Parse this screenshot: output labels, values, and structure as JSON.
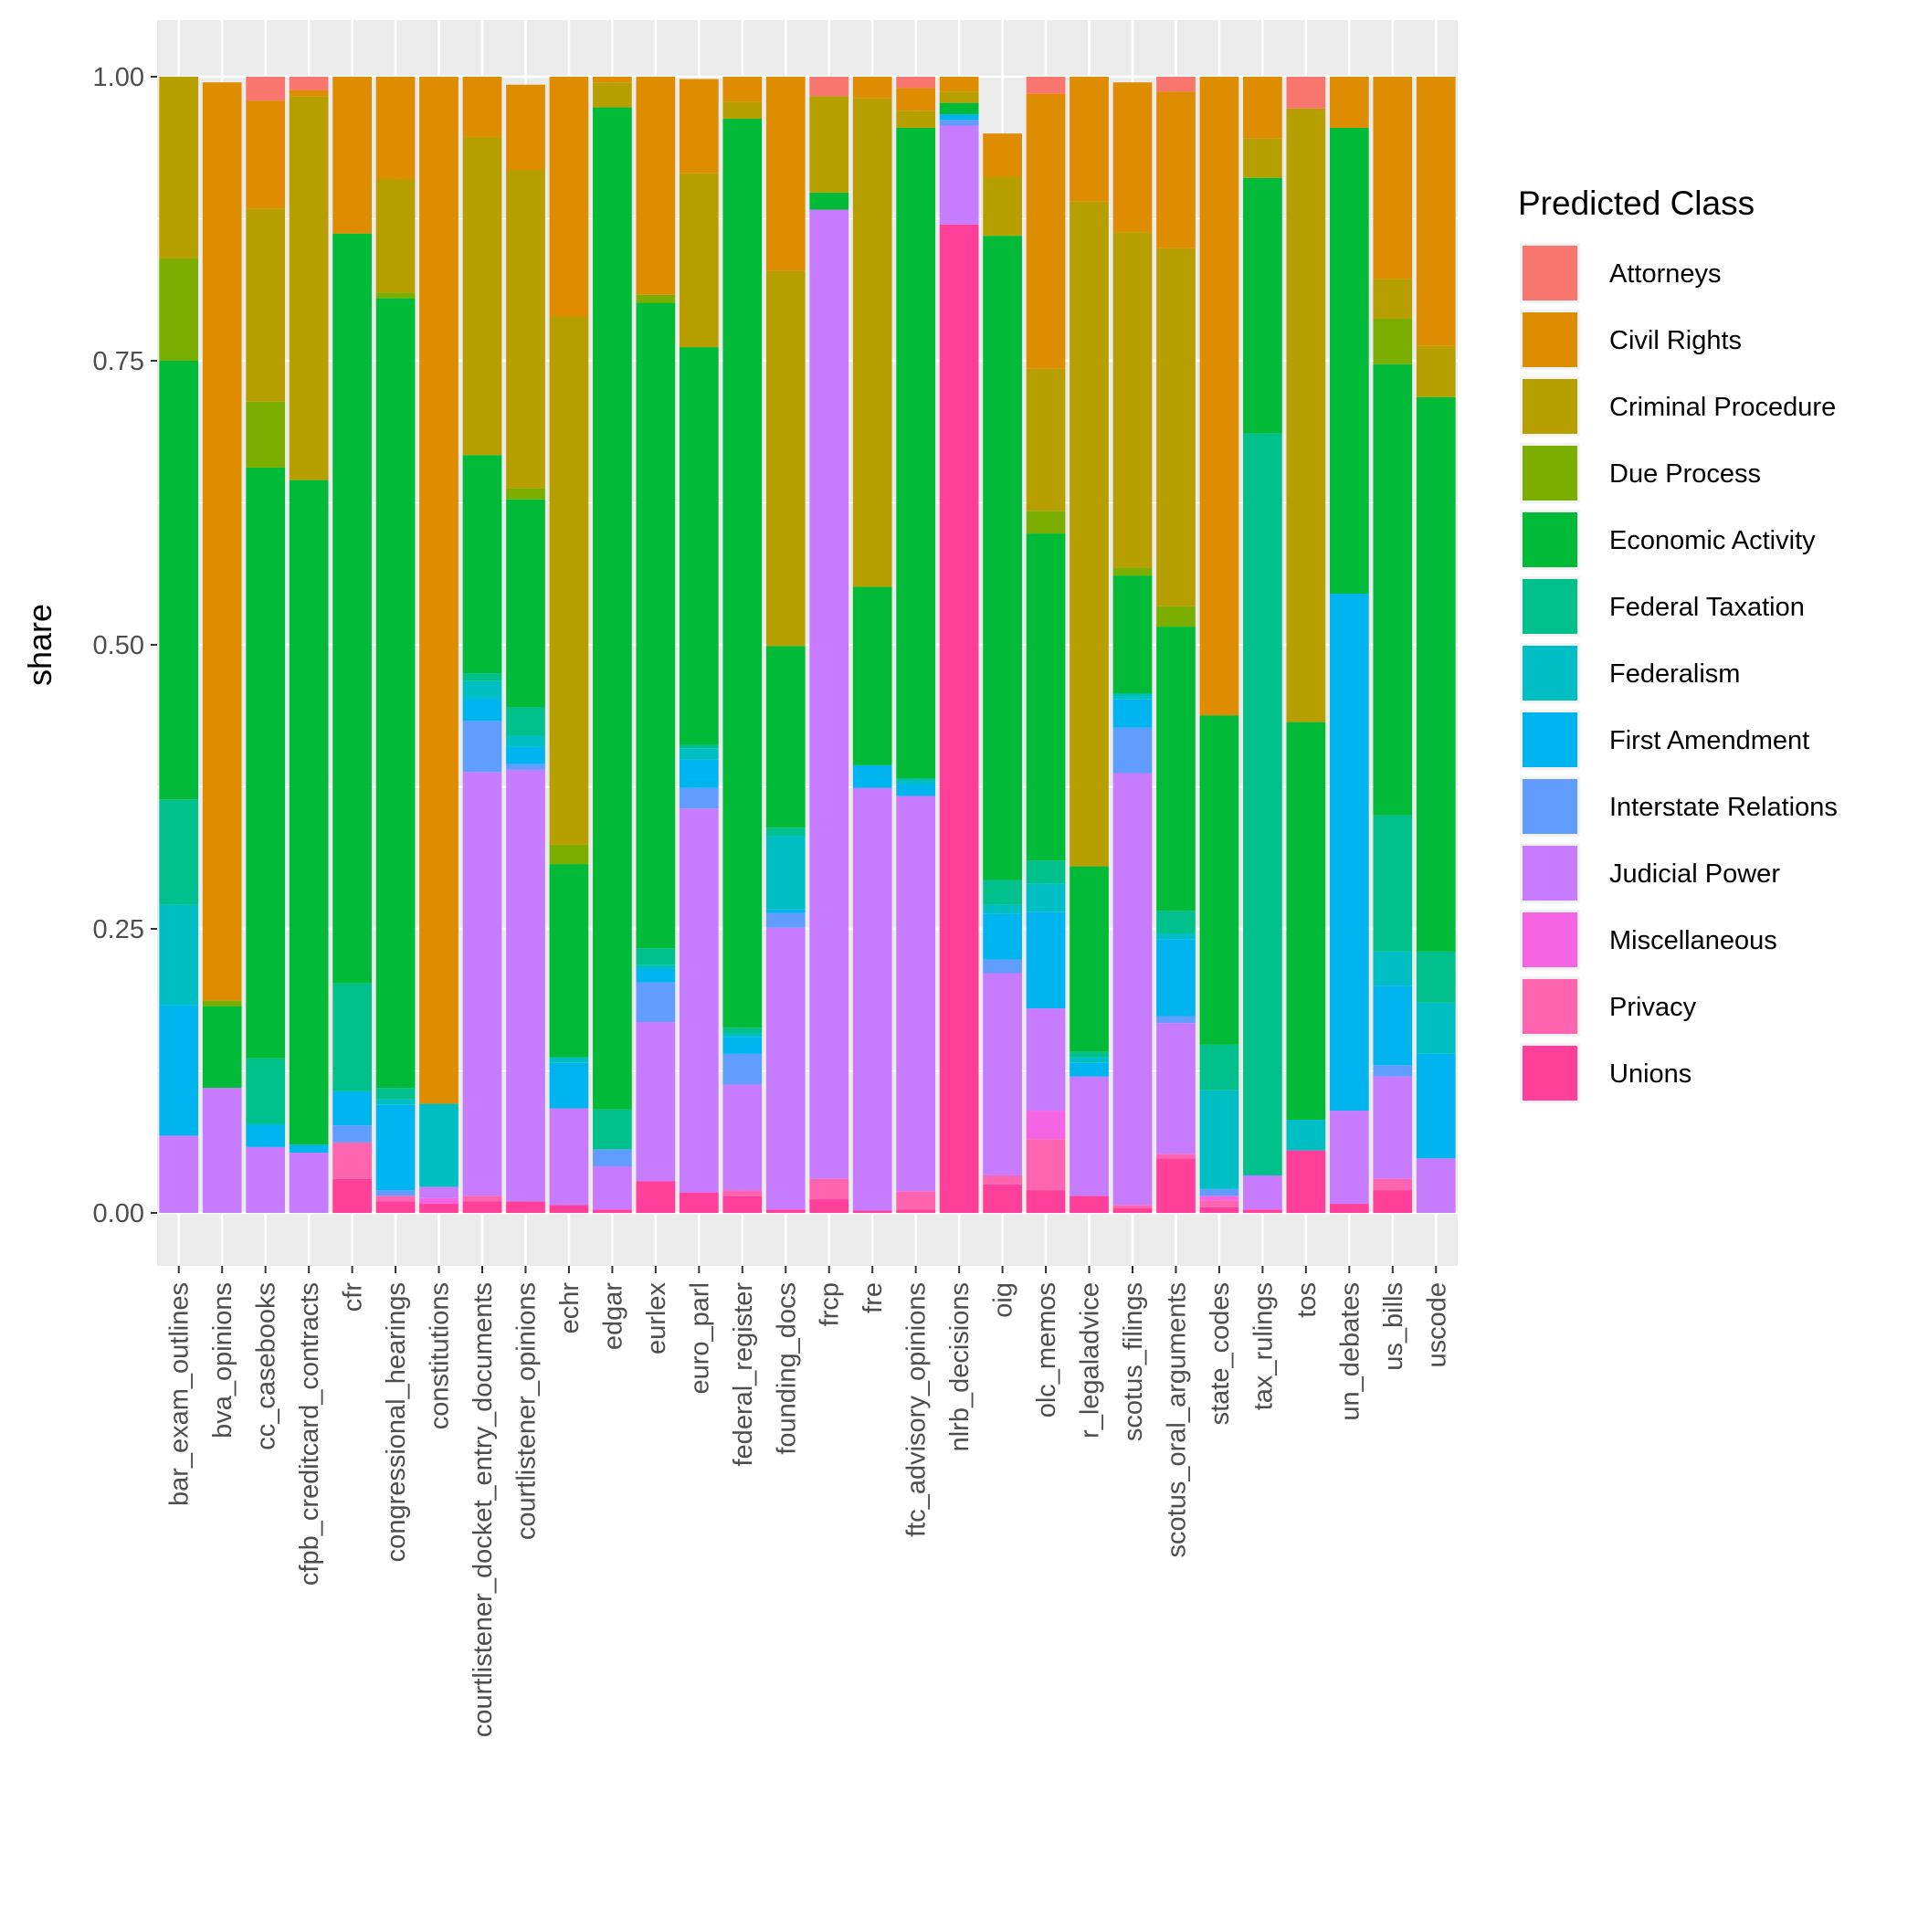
{
  "chart_data": {
    "type": "bar",
    "stacked": true,
    "title": "",
    "xlabel": "",
    "ylabel": "share",
    "ylim": [
      0,
      1
    ],
    "yticks": [
      "0.00",
      "0.25",
      "0.50",
      "0.75",
      "1.00"
    ],
    "legend_title": "Predicted Class",
    "legend_position": "right",
    "categories": [
      "bar_exam_outlines",
      "bva_opinions",
      "cc_casebooks",
      "cfpb_creditcard_contracts",
      "cfr",
      "congressional_hearings",
      "constitutions",
      "courtlistener_docket_entry_documents",
      "courtlistener_opinions",
      "echr",
      "edgar",
      "eurlex",
      "euro_parl",
      "federal_register",
      "founding_docs",
      "frcp",
      "fre",
      "ftc_advisory_opinions",
      "nlrb_decisions",
      "oig",
      "olc_memos",
      "r_legaladvice",
      "scotus_filings",
      "scotus_oral_arguments",
      "state_codes",
      "tax_rulings",
      "tos",
      "un_debates",
      "us_bills",
      "uscode"
    ],
    "classes": [
      "Attorneys",
      "Civil Rights",
      "Criminal Procedure",
      "Due Process",
      "Economic Activity",
      "Federal Taxation",
      "Federalism",
      "First Amendment",
      "Interstate Relations",
      "Judicial Power",
      "Miscellaneous",
      "Privacy",
      "Unions"
    ],
    "colors": [
      "#F8766D",
      "#DE8C00",
      "#B79F00",
      "#7CAE00",
      "#00BA38",
      "#00C08B",
      "#00BFC4",
      "#00B4F0",
      "#619CFF",
      "#C77CFF",
      "#F564E3",
      "#FF64B0",
      "#FF3F9A"
    ],
    "series": [
      {
        "name": "Unions",
        "values": [
          0,
          0,
          0,
          0,
          0.03,
          0.01,
          0.008,
          0.01,
          0.01,
          0.007,
          0.003,
          0.028,
          0.018,
          0.015,
          0.003,
          0.012,
          0.002,
          0.003,
          0.87,
          0.025,
          0.02,
          0.015,
          0.004,
          0.048,
          0.005,
          0.003,
          0.055,
          0.008,
          0.02,
          0
        ]
      },
      {
        "name": "Privacy",
        "values": [
          0,
          0,
          0,
          0,
          0.032,
          0.005,
          0,
          0.005,
          0,
          0,
          0,
          0,
          0,
          0.005,
          0,
          0.018,
          0,
          0.016,
          0,
          0.008,
          0.045,
          0,
          0.003,
          0.004,
          0.006,
          0,
          0,
          0,
          0.01,
          0
        ]
      },
      {
        "name": "Miscellaneous",
        "values": [
          0,
          0,
          0,
          0,
          0,
          0,
          0.005,
          0,
          0,
          0,
          0,
          0,
          0,
          0,
          0,
          0,
          0,
          0,
          0,
          0,
          0.025,
          0,
          0,
          0,
          0.004,
          0,
          0,
          0,
          0,
          0
        ]
      },
      {
        "name": "Judicial Power",
        "values": [
          0.068,
          0.11,
          0.058,
          0.053,
          0,
          0,
          0.01,
          0.373,
          0.38,
          0.085,
          0.038,
          0.14,
          0.338,
          0.093,
          0.248,
          0.853,
          0.372,
          0.348,
          0.087,
          0.178,
          0.09,
          0.105,
          0.38,
          0.115,
          0,
          0.03,
          0,
          0.082,
          0.09,
          0.048
        ]
      },
      {
        "name": "Interstate Relations",
        "values": [
          0,
          0,
          0,
          0,
          0.015,
          0.005,
          0,
          0.045,
          0.005,
          0,
          0.015,
          0.035,
          0.018,
          0.027,
          0.013,
          0,
          0,
          0,
          0.005,
          0.012,
          0,
          0,
          0.04,
          0.006,
          0.006,
          0,
          0,
          0,
          0.01,
          0
        ]
      },
      {
        "name": "First Amendment",
        "values": [
          0.115,
          0,
          0.02,
          0.007,
          0.03,
          0.075,
          0,
          0.02,
          0.015,
          0.04,
          0,
          0.012,
          0.025,
          0.015,
          0.003,
          0,
          0.02,
          0.01,
          0.005,
          0.04,
          0.085,
          0.012,
          0.025,
          0.068,
          0,
          0,
          0,
          0.455,
          0.07,
          0.092
        ]
      },
      {
        "name": "Federalism",
        "values": [
          0.088,
          0,
          0,
          0,
          0,
          0.005,
          0.073,
          0.015,
          0.01,
          0.005,
          0,
          0.003,
          0.01,
          0.003,
          0.065,
          0,
          0,
          0.005,
          0,
          0.008,
          0.025,
          0.005,
          0.005,
          0.005,
          0.087,
          0,
          0.027,
          0,
          0.03,
          0.045
        ]
      },
      {
        "name": "Federal Taxation",
        "values": [
          0.093,
          0,
          0.058,
          0,
          0.095,
          0.01,
          0,
          0.007,
          0.025,
          0,
          0.035,
          0.015,
          0.003,
          0.005,
          0.007,
          0,
          0,
          0,
          0,
          0.022,
          0.02,
          0.005,
          0,
          0.02,
          0.04,
          0.653,
          0,
          0,
          0.12,
          0.045
        ]
      },
      {
        "name": "Economic Activity",
        "values": [
          0.386,
          0.072,
          0.52,
          0.585,
          0.66,
          0.695,
          0,
          0.192,
          0.183,
          0.17,
          0.882,
          0.568,
          0.35,
          0.8,
          0.16,
          0.015,
          0.157,
          0.573,
          0.01,
          0.567,
          0.288,
          0.163,
          0.104,
          0.25,
          0.29,
          0.225,
          0.35,
          0.41,
          0.397,
          0.488
        ]
      },
      {
        "name": "Due Process",
        "values": [
          0.09,
          0.005,
          0.058,
          0,
          0,
          0.005,
          0,
          0,
          0.01,
          0.017,
          0,
          0.007,
          0,
          0,
          0,
          0,
          0,
          0,
          0,
          0,
          0.02,
          0,
          0.007,
          0.018,
          0,
          0,
          0,
          0,
          0.04,
          0
        ]
      },
      {
        "name": "Criminal Procedure",
        "values": [
          0.16,
          0,
          0.17,
          0.338,
          0,
          0.1,
          0,
          0.28,
          0.28,
          0.465,
          0.022,
          0,
          0.153,
          0.015,
          0.33,
          0.085,
          0.43,
          0.015,
          0.01,
          0.052,
          0.125,
          0.585,
          0.295,
          0.315,
          0,
          0.035,
          0.54,
          0,
          0.035,
          0.045
        ]
      },
      {
        "name": "Civil Rights",
        "values": [
          0,
          0.808,
          0.095,
          0.005,
          0.138,
          0.095,
          0.904,
          0.055,
          0.075,
          0.211,
          0.005,
          0.195,
          0.083,
          0.025,
          0.174,
          0,
          0.019,
          0.02,
          0.013,
          0.038,
          0.242,
          0.125,
          0.132,
          0.138,
          0.562,
          0.054,
          0,
          0.045,
          0.213,
          0.237
        ]
      },
      {
        "name": "Attorneys",
        "values": [
          0,
          0,
          0.021,
          0.012,
          0,
          0,
          0,
          0.008,
          0,
          0,
          0,
          0,
          0,
          0,
          0,
          0.017,
          0,
          0.018,
          0,
          0,
          0.015,
          0,
          0,
          0.013,
          0,
          0,
          0.028,
          0,
          0,
          0
        ]
      }
    ]
  }
}
